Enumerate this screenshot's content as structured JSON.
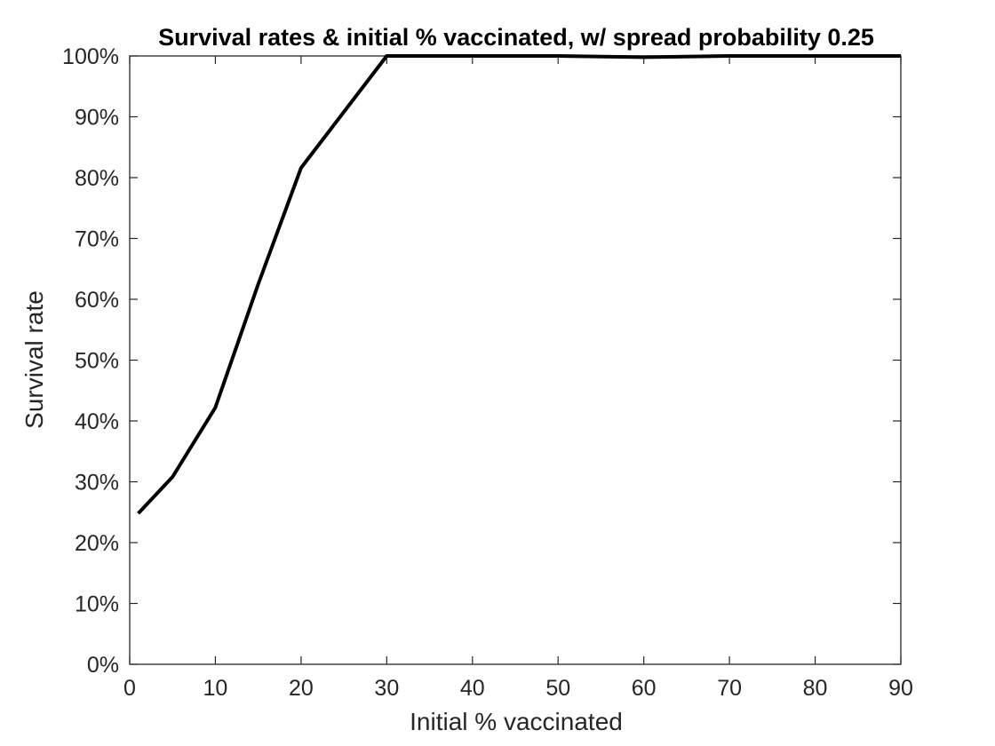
{
  "chart_data": {
    "type": "line",
    "title": "Survival rates & initial % vaccinated, w/ spread probability 0.25",
    "xlabel": "Initial % vaccinated",
    "ylabel": "Survival rate",
    "xlim": [
      0,
      90
    ],
    "ylim": [
      0,
      100
    ],
    "x_ticks": [
      0,
      10,
      20,
      30,
      40,
      50,
      60,
      70,
      80,
      90
    ],
    "x_tick_labels": [
      "0",
      "10",
      "20",
      "30",
      "40",
      "50",
      "60",
      "70",
      "80",
      "90"
    ],
    "y_ticks": [
      0,
      10,
      20,
      30,
      40,
      50,
      60,
      70,
      80,
      90,
      100
    ],
    "y_tick_labels": [
      "0%",
      "10%",
      "20%",
      "30%",
      "40%",
      "50%",
      "60%",
      "70%",
      "80%",
      "90%",
      "100%"
    ],
    "grid": false,
    "box": true,
    "line_color": "#000000",
    "axis_color": "#262626",
    "series": [
      {
        "x": [
          1,
          5,
          10,
          15,
          20,
          25,
          30,
          40,
          50,
          60,
          70,
          80,
          90
        ],
        "values": [
          24.8,
          30.8,
          42.2,
          62.5,
          81.6,
          90.8,
          100,
          100,
          100,
          99.8,
          100,
          100,
          100
        ]
      }
    ]
  }
}
